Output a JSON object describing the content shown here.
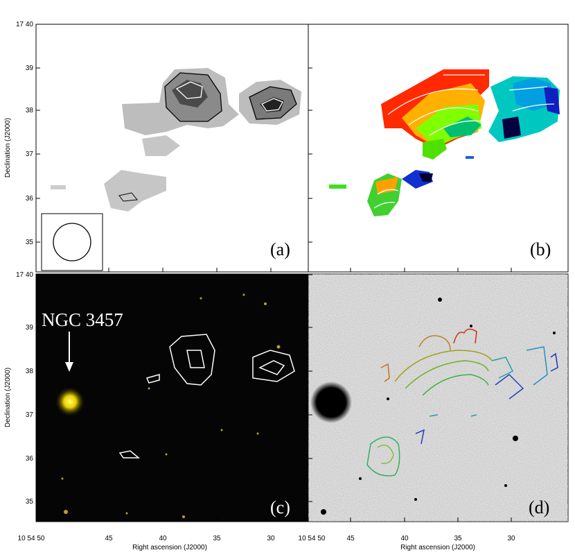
{
  "panels": [
    {
      "label": "(a)"
    },
    {
      "label": "(b)"
    },
    {
      "label": "(c)"
    },
    {
      "label": "(d)"
    }
  ],
  "y_axis": {
    "title": "Declination (J2000)",
    "ticks": [
      "17 40",
      "39",
      "38",
      "37",
      "36",
      "35"
    ]
  },
  "x_axis": {
    "title": "Right ascension (J2000)",
    "ticks": [
      "10 54 50",
      "45",
      "40",
      "35",
      "30"
    ]
  },
  "annotation": "NGC 3457"
}
